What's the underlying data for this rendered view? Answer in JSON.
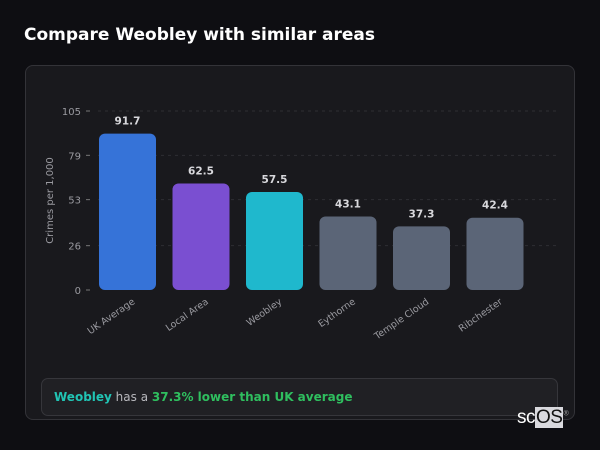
{
  "title": "Compare Weobley with similar areas",
  "chart_data": {
    "type": "bar",
    "categories": [
      "UK Average",
      "Local Area",
      "Weobley",
      "Eythorne",
      "Temple Cloud",
      "Ribchester"
    ],
    "values": [
      91.7,
      62.5,
      57.5,
      43.1,
      37.3,
      42.4
    ],
    "colors": [
      "#3673d8",
      "#7a4fd1",
      "#1fb8cd",
      "#5b6577",
      "#5b6577",
      "#5b6577"
    ],
    "ylabel": "Crimes per 1,000",
    "xlabel": "",
    "ylim": [
      0,
      105
    ],
    "yticks": [
      0,
      26,
      53,
      79,
      105
    ],
    "grid": true
  },
  "summary": {
    "area": "Weobley",
    "middle": " has a ",
    "comparison": "37.3% lower than UK average"
  },
  "logo": {
    "text_a": "sc",
    "text_b": "OS",
    "mark": "®"
  }
}
